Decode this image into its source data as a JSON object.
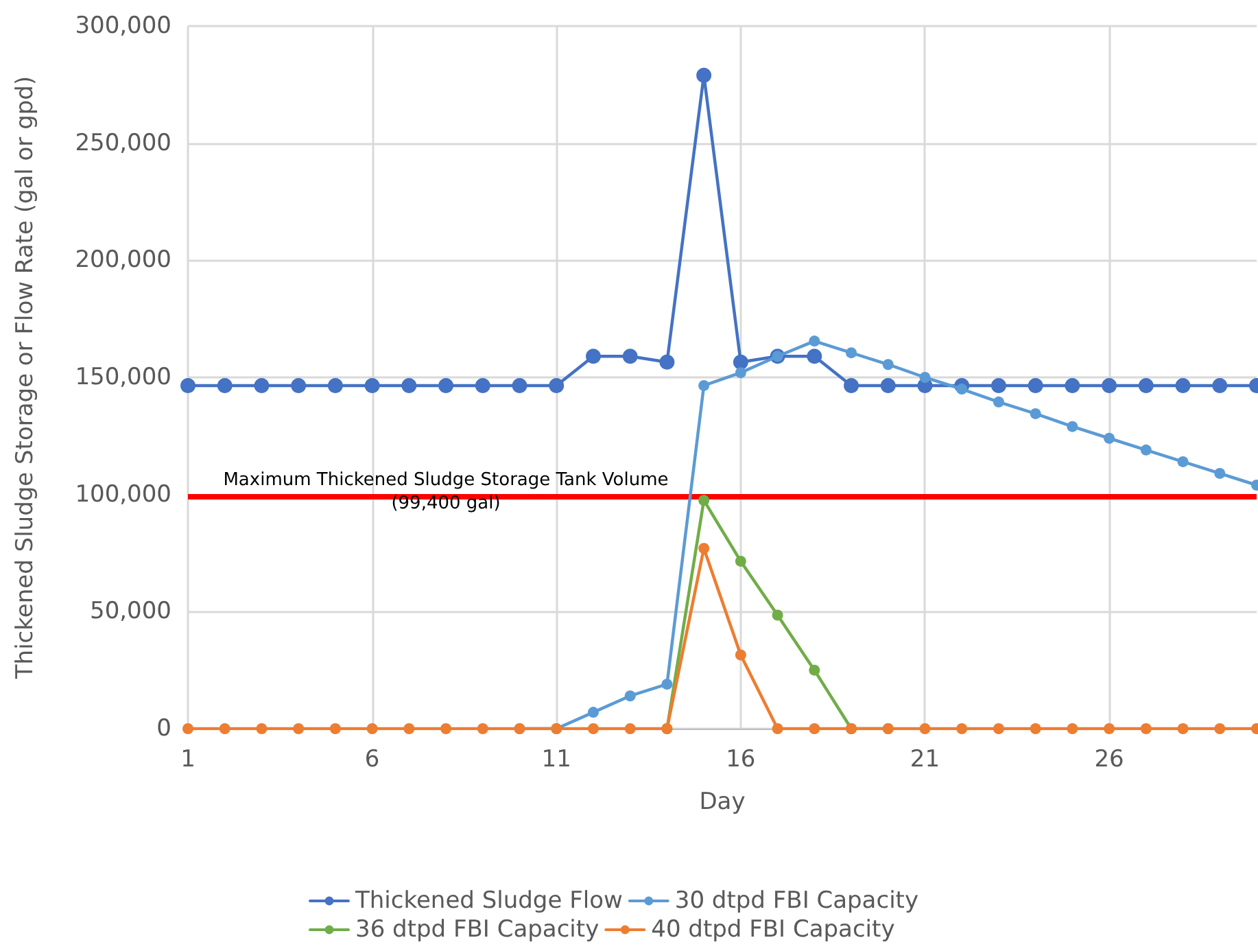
{
  "chart_data": {
    "type": "line",
    "xlabel": "Day",
    "ylabel": "Thickened Sludge Storage or Flow Rate (gal or gpd)",
    "x": [
      1,
      2,
      3,
      4,
      5,
      6,
      7,
      8,
      9,
      10,
      11,
      12,
      13,
      14,
      15,
      16,
      17,
      18,
      19,
      20,
      21,
      22,
      23,
      24,
      25,
      26,
      27,
      28,
      29,
      30
    ],
    "series": [
      {
        "name": "Thickened Sludge Flow",
        "color": "#4472c4",
        "values": [
          146500,
          146500,
          146500,
          146500,
          146500,
          146500,
          146500,
          146500,
          146500,
          146500,
          146500,
          159000,
          159000,
          156500,
          279000,
          156500,
          159000,
          159000,
          146500,
          146500,
          146500,
          146500,
          146500,
          146500,
          146500,
          146500,
          146500,
          146500,
          146500,
          146500
        ]
      },
      {
        "name": "30 dtpd FBI Capacity",
        "color": "#5b9bd5",
        "values": [
          null,
          null,
          null,
          null,
          null,
          null,
          null,
          null,
          null,
          0,
          0,
          7000,
          14000,
          19000,
          146500,
          152000,
          159000,
          165500,
          160500,
          155500,
          150000,
          145000,
          139500,
          134500,
          129000,
          124000,
          119000,
          114000,
          109000,
          104000
        ]
      },
      {
        "name": "36 dtpd FBI Capacity",
        "color": "#70ad47",
        "values": [
          null,
          null,
          null,
          null,
          null,
          null,
          null,
          null,
          null,
          null,
          null,
          null,
          null,
          0,
          97500,
          71500,
          48500,
          25000,
          0,
          0,
          null,
          null,
          null,
          null,
          null,
          null,
          null,
          null,
          null,
          null
        ]
      },
      {
        "name": "40 dtpd FBI Capacity",
        "color": "#ed7d31",
        "values": [
          0,
          0,
          0,
          0,
          0,
          0,
          0,
          0,
          0,
          0,
          0,
          0,
          0,
          0,
          77000,
          31500,
          0,
          0,
          0,
          0,
          0,
          0,
          0,
          0,
          0,
          0,
          0,
          0,
          0,
          0
        ]
      }
    ],
    "xlim": [
      1,
      30
    ],
    "xticks": [
      1,
      6,
      11,
      16,
      21,
      26
    ],
    "ylim": [
      0,
      300000
    ],
    "yticks": [
      0,
      {
        "value": 50000,
        "label": "50,000"
      },
      {
        "value": 100000,
        "label": "100,000"
      },
      {
        "value": 150000,
        "label": "150,000"
      },
      {
        "value": 200000,
        "label": "200,000"
      },
      {
        "value": 250000,
        "label": "250,000"
      },
      {
        "value": 300000,
        "label": "300,000"
      }
    ],
    "ref_lines": [
      {
        "axis": "y",
        "value": 99400,
        "label": "Maximum Thickened Sludge Storage Tank Volume\n(99,400 gal)",
        "color": "#ff0000",
        "line_style": "solid"
      }
    ],
    "grid": true,
    "legend": "bottom",
    "marker": "circle",
    "line_style": "solid"
  }
}
